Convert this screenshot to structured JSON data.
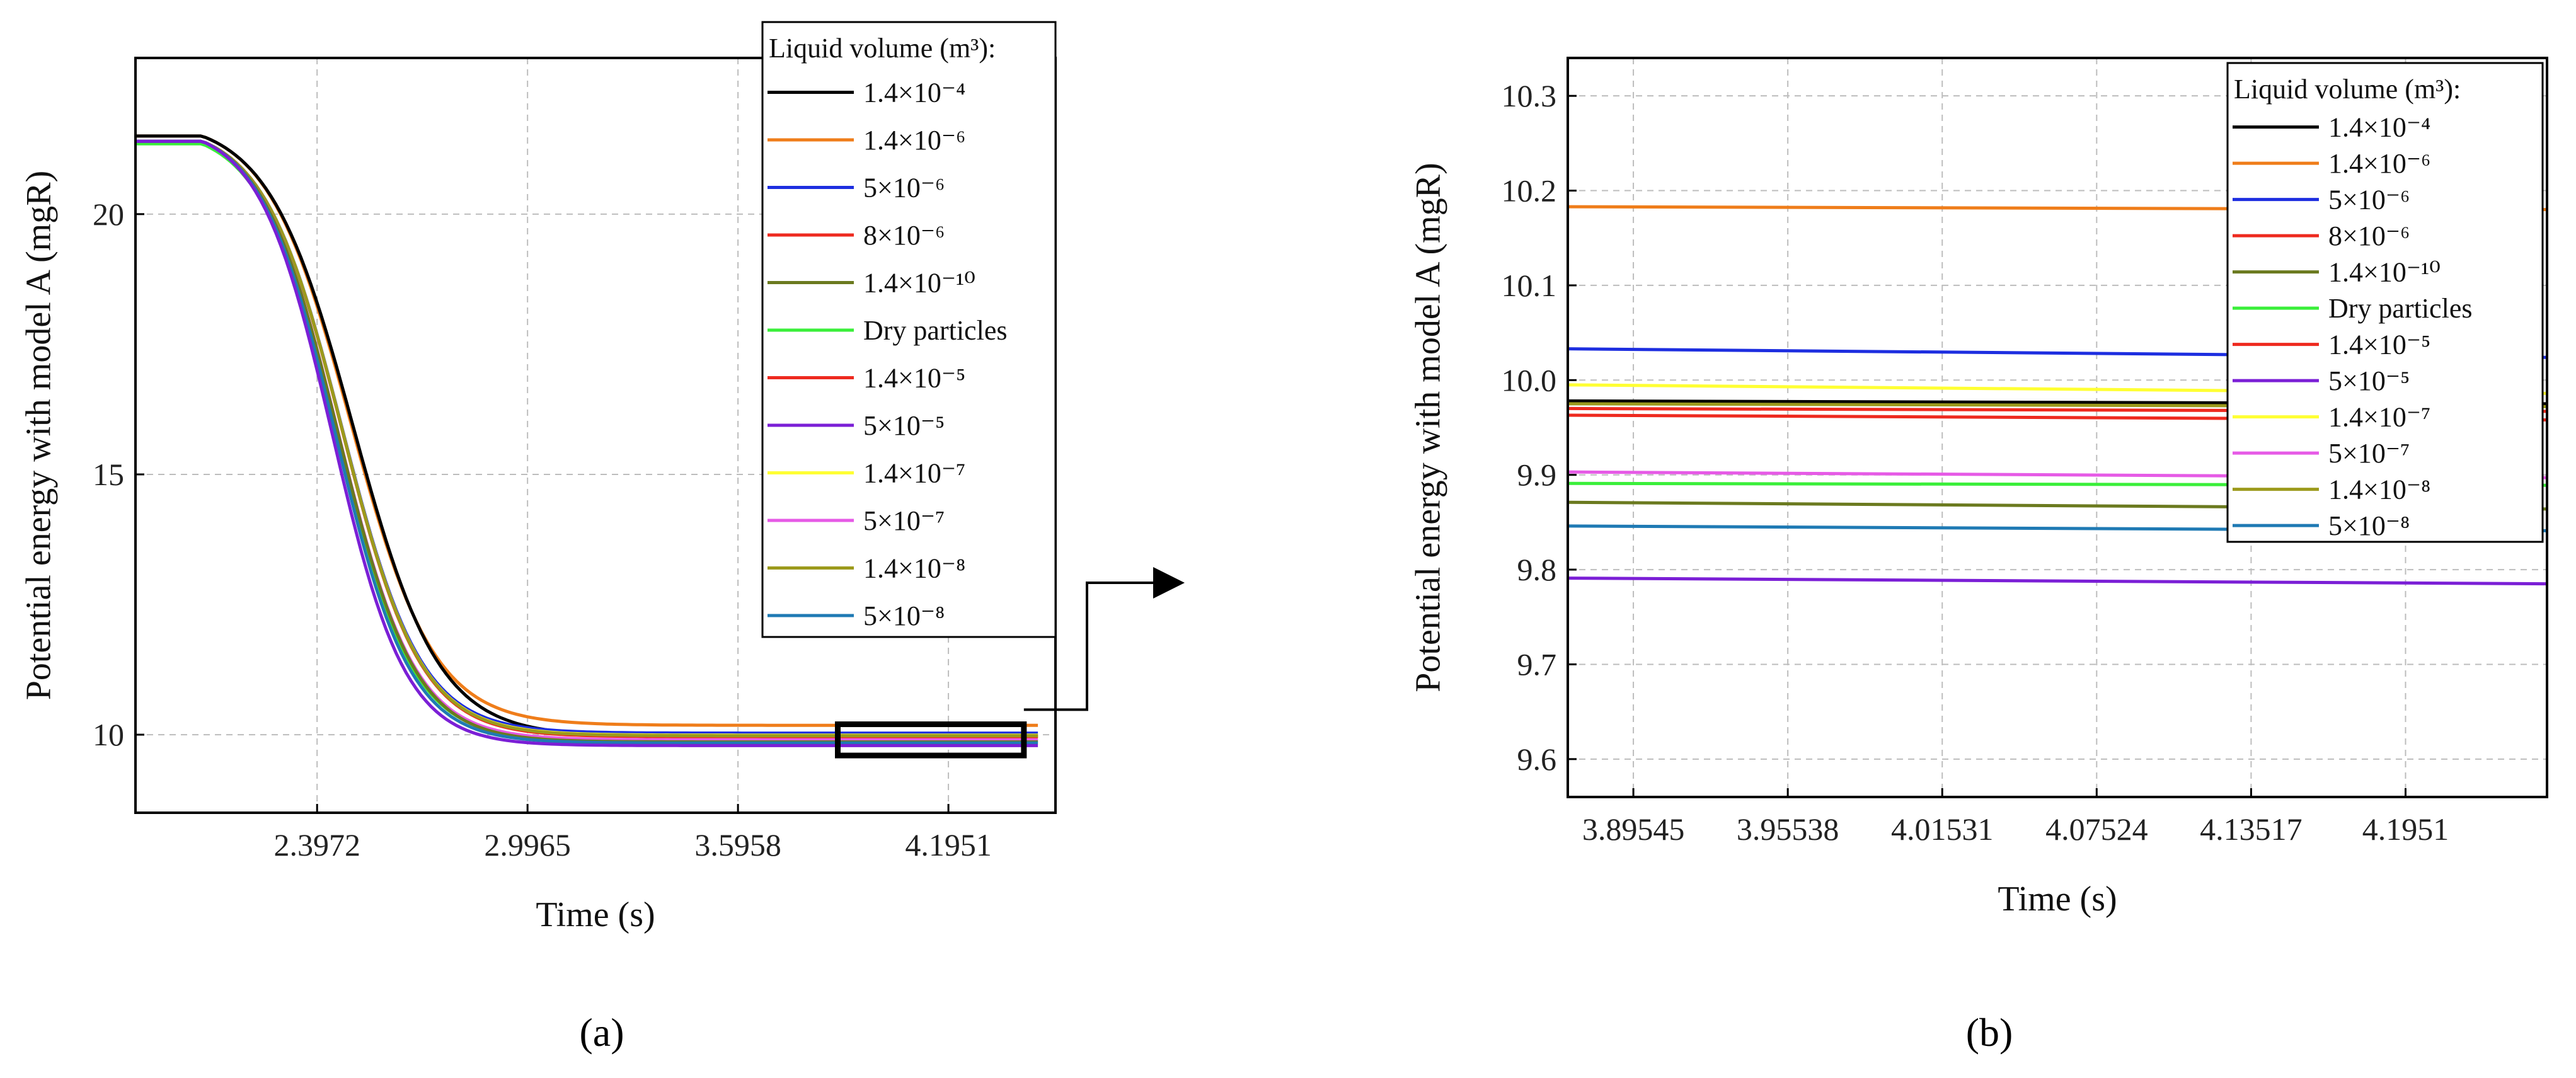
{
  "colors": {
    "black": "#000000",
    "orange": "#ef7d1a",
    "blue": "#1d2ee0",
    "red": "#ee2a1f",
    "olive": "#6b7a1f",
    "green": "#3aef3a",
    "purple": "#7b1fd6",
    "yellow": "#ffff33",
    "magenta": "#e65ae6",
    "darkgold": "#9c9a1c",
    "teal": "#1f7ab4"
  },
  "chart_data": [
    {
      "panel": "a",
      "type": "line",
      "caption_letter": "a",
      "xlabel": "Time (s)",
      "ylabel": "Potential energy with model A (mgR)",
      "xlim": [
        1.88,
        4.5
      ],
      "ylim": [
        8.5,
        23.0
      ],
      "xticks": [
        2.3972,
        2.9965,
        3.5958,
        4.1951
      ],
      "xtick_labels": [
        "2.3972",
        "2.9965",
        "3.5958",
        "4.1951"
      ],
      "yticks": [
        10,
        15,
        20
      ],
      "ytick_labels": [
        "10",
        "15",
        "20"
      ],
      "grid": true,
      "legend_title": "Liquid volume (m³):",
      "legend_location": "top-right",
      "zoom_box": {
        "x": [
          3.88,
          4.41
        ],
        "y": [
          9.6,
          10.2
        ]
      },
      "series": [
        {
          "name": "1.4×10⁻⁴",
          "color": "#000000",
          "plateau": 9.97,
          "start": 21.5
        },
        {
          "name": "1.4×10⁻⁶",
          "color": "#ef7d1a",
          "plateau": 10.18,
          "start": 21.5
        },
        {
          "name": "5×10⁻⁶",
          "color": "#1d2ee0",
          "plateau": 10.03,
          "start": 21.4
        },
        {
          "name": "8×10⁻⁶",
          "color": "#ee2a1f",
          "plateau": 9.96,
          "start": 21.4
        },
        {
          "name": "1.4×10⁻¹⁰",
          "color": "#6b7a1f",
          "plateau": 9.86,
          "start": 21.4
        },
        {
          "name": "Dry particles",
          "color": "#3aef3a",
          "plateau": 9.89,
          "start": 21.35
        },
        {
          "name": "1.4×10⁻⁵",
          "color": "#ee2a1f",
          "plateau": 9.97,
          "start": 21.4
        },
        {
          "name": "5×10⁻⁵",
          "color": "#7b1fd6",
          "plateau": 9.79,
          "start": 21.4
        },
        {
          "name": "1.4×10⁻⁷",
          "color": "#ffff33",
          "plateau": 9.99,
          "start": 21.4
        },
        {
          "name": "5×10⁻⁷",
          "color": "#e65ae6",
          "plateau": 9.9,
          "start": 21.4
        },
        {
          "name": "1.4×10⁻⁸",
          "color": "#9c9a1c",
          "plateau": 9.98,
          "start": 21.4
        },
        {
          "name": "5×10⁻⁸",
          "color": "#1f7ab4",
          "plateau": 9.84,
          "start": 21.4
        }
      ]
    },
    {
      "panel": "b",
      "type": "line",
      "caption_letter": "b",
      "xlabel": "Time (s)",
      "ylabel": "Potential energy with model A (mgR)",
      "xlim": [
        3.87,
        4.25
      ],
      "ylim": [
        9.56,
        10.34
      ],
      "xticks": [
        3.89545,
        3.95538,
        4.01531,
        4.07524,
        4.13517,
        4.1951
      ],
      "xtick_labels": [
        "3.89545",
        "3.95538",
        "4.01531",
        "4.07524",
        "4.13517",
        "4.1951"
      ],
      "yticks": [
        9.6,
        9.7,
        9.8,
        9.9,
        10.0,
        10.1,
        10.2,
        10.3
      ],
      "ytick_labels": [
        "9.6",
        "9.7",
        "9.8",
        "9.9",
        "10.0",
        "10.1",
        "10.2",
        "10.3"
      ],
      "grid": true,
      "legend_title": "Liquid volume (m³):",
      "legend_location": "top-right",
      "series": [
        {
          "name": "1.4×10⁻⁴",
          "color": "#000000",
          "start": 9.978,
          "end": 9.975
        },
        {
          "name": "1.4×10⁻⁶",
          "color": "#ef7d1a",
          "start": 10.183,
          "end": 10.18
        },
        {
          "name": "5×10⁻⁶",
          "color": "#1d2ee0",
          "start": 10.033,
          "end": 10.024
        },
        {
          "name": "8×10⁻⁶",
          "color": "#ee2a1f",
          "start": 9.963,
          "end": 9.958
        },
        {
          "name": "1.4×10⁻¹⁰",
          "color": "#6b7a1f",
          "start": 9.871,
          "end": 9.864
        },
        {
          "name": "Dry particles",
          "color": "#3aef3a",
          "start": 9.891,
          "end": 9.889
        },
        {
          "name": "1.4×10⁻⁵",
          "color": "#ee2a1f",
          "start": 9.97,
          "end": 9.967
        },
        {
          "name": "5×10⁻⁵",
          "color": "#7b1fd6",
          "start": 9.791,
          "end": 9.785
        },
        {
          "name": "1.4×10⁻⁷",
          "color": "#ffff33",
          "start": 9.995,
          "end": 9.986
        },
        {
          "name": "5×10⁻⁷",
          "color": "#e65ae6",
          "start": 9.903,
          "end": 9.897
        },
        {
          "name": "1.4×10⁻⁸",
          "color": "#9c9a1c",
          "start": 9.975,
          "end": 9.972
        },
        {
          "name": "5×10⁻⁸",
          "color": "#1f7ab4",
          "start": 9.846,
          "end": 9.841
        }
      ]
    }
  ]
}
